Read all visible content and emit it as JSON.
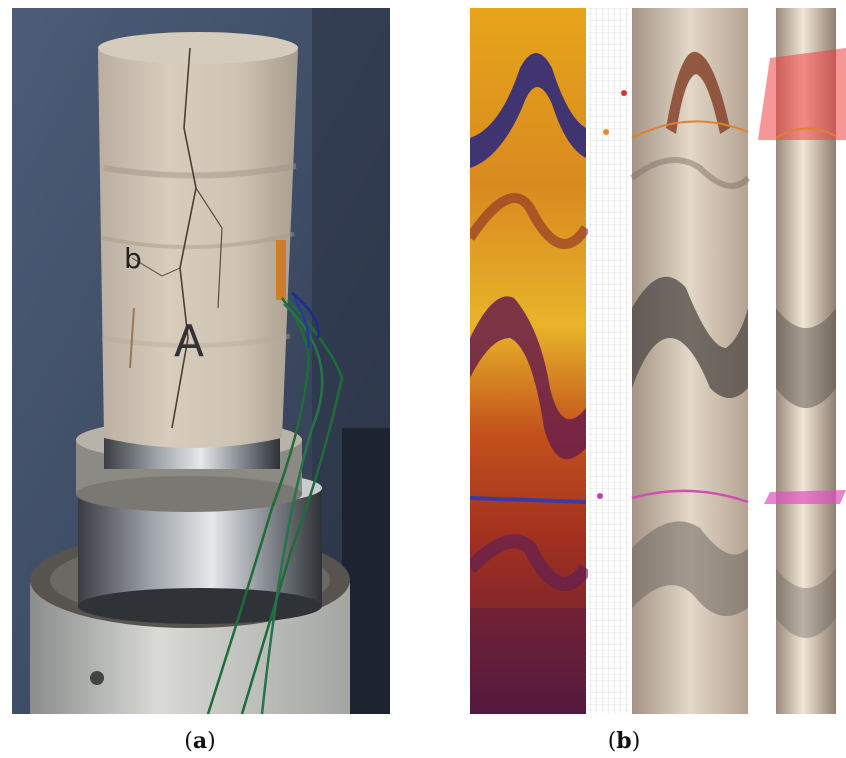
{
  "figure": {
    "panel_a": {
      "caption_open": "(",
      "caption_letter": "a",
      "caption_close": ")",
      "specimen_marks": [
        "b",
        "A"
      ]
    },
    "panel_b": {
      "caption_open": "(",
      "caption_letter": "b",
      "caption_close": ")"
    }
  }
}
